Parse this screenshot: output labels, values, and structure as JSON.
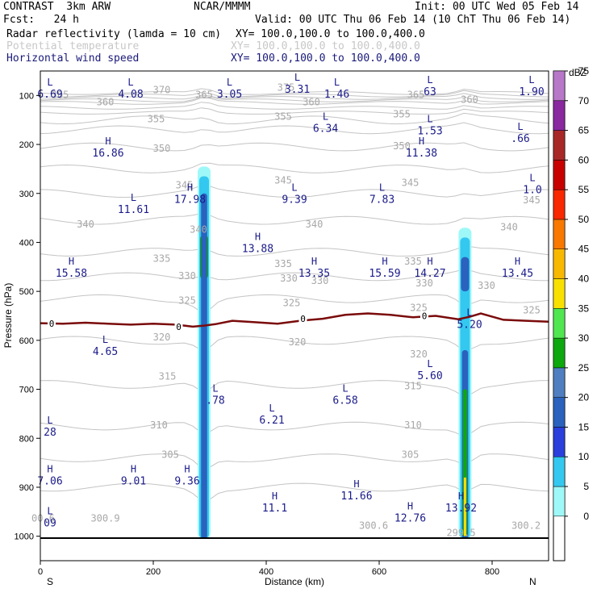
{
  "header": {
    "model": "CONTRAST  3km ARW",
    "center": "NCAR/MMMM",
    "init": "Init: 00 UTC Wed 05 Feb 14",
    "fcst": "Fcst:   24 h",
    "valid": "Valid: 00 UTC Thu 06 Feb 14 (10 ChT Thu 06 Feb 14)",
    "field1": "Radar reflectivity (lamda = 10 cm)",
    "field1_xy": "XY= 100.0,100.0 to 100.0,400.0",
    "field2": "Potential temperature",
    "field2_xy": "XY= 100.0,100.0 to 100.0,400.0",
    "field3": "Horizontal wind speed",
    "field3_xy": "XY= 100.0,100.0 to 100.0,400.0"
  },
  "chart_data": {
    "type": "cross-section",
    "xlabel": "Distance (km)",
    "ylabel": "Pressure (hPa)",
    "xlim": [
      0,
      900
    ],
    "ylim": [
      1050,
      50
    ],
    "x_ticks": [
      0,
      200,
      400,
      600,
      800
    ],
    "y_ticks": [
      100,
      200,
      300,
      400,
      500,
      600,
      700,
      800,
      900,
      1000
    ],
    "x_endpoints": [
      "S",
      "N"
    ],
    "colorbar": {
      "units": "dBZ",
      "levels": [
        "0",
        "5",
        "10",
        "15",
        "20",
        "25",
        "30",
        "35",
        "40",
        "45",
        "50",
        "55",
        "60",
        "65",
        "70",
        "75"
      ],
      "colors": [
        "#ffffff",
        "#9ff8f8",
        "#34c8f0",
        "#2a3fdc",
        "#2a62be",
        "#4f7fc0",
        "#0da80d",
        "#50e650",
        "#f8e000",
        "#f8b800",
        "#f87800",
        "#f82800",
        "#c80000",
        "#a82828",
        "#8a28a0",
        "#b878c8"
      ]
    },
    "freezing_level": {
      "label": "0",
      "x": [
        0,
        40,
        80,
        120,
        160,
        200,
        240,
        270,
        290,
        310,
        340,
        380,
        420,
        460,
        500,
        540,
        580,
        620,
        660,
        700,
        740,
        760,
        780,
        820,
        860,
        900
      ],
      "p": [
        565,
        566,
        564,
        566,
        568,
        566,
        568,
        572,
        570,
        567,
        560,
        563,
        566,
        560,
        556,
        548,
        545,
        548,
        553,
        550,
        557,
        552,
        545,
        558,
        560,
        562
      ]
    },
    "theta_labels": [
      "375",
      "370",
      "365",
      "360",
      "355",
      "350",
      "345",
      "340",
      "335",
      "330",
      "325",
      "320",
      "315",
      "310",
      "305",
      "300.9",
      "300.6",
      "300.2",
      "299.5"
    ],
    "theta_label_positions": [
      {
        "t": "365",
        "x": 35,
        "p": 105
      },
      {
        "t": "370",
        "x": 215,
        "p": 95
      },
      {
        "t": "365",
        "x": 290,
        "p": 105
      },
      {
        "t": "375",
        "x": 435,
        "p": 90
      },
      {
        "t": "365",
        "x": 665,
        "p": 105
      },
      {
        "t": "360",
        "x": 115,
        "p": 120
      },
      {
        "t": "360",
        "x": 480,
        "p": 120
      },
      {
        "t": "360",
        "x": 760,
        "p": 115
      },
      {
        "t": "355",
        "x": 205,
        "p": 155
      },
      {
        "t": "355",
        "x": 430,
        "p": 150
      },
      {
        "t": "355",
        "x": 640,
        "p": 145
      },
      {
        "t": "350",
        "x": 215,
        "p": 215
      },
      {
        "t": "350",
        "x": 640,
        "p": 210
      },
      {
        "t": "345",
        "x": 255,
        "p": 290
      },
      {
        "t": "345",
        "x": 430,
        "p": 280
      },
      {
        "t": "345",
        "x": 655,
        "p": 285
      },
      {
        "t": "345",
        "x": 870,
        "p": 320
      },
      {
        "t": "340",
        "x": 80,
        "p": 370
      },
      {
        "t": "340",
        "x": 280,
        "p": 380
      },
      {
        "t": "340",
        "x": 485,
        "p": 370
      },
      {
        "t": "340",
        "x": 830,
        "p": 375
      },
      {
        "t": "335",
        "x": 215,
        "p": 440
      },
      {
        "t": "335",
        "x": 430,
        "p": 450
      },
      {
        "t": "335",
        "x": 660,
        "p": 445
      },
      {
        "t": "330",
        "x": 260,
        "p": 475
      },
      {
        "t": "330",
        "x": 440,
        "p": 480
      },
      {
        "t": "330",
        "x": 495,
        "p": 485
      },
      {
        "t": "330",
        "x": 680,
        "p": 490
      },
      {
        "t": "330",
        "x": 790,
        "p": 495
      },
      {
        "t": "325",
        "x": 260,
        "p": 525
      },
      {
        "t": "325",
        "x": 445,
        "p": 530
      },
      {
        "t": "325",
        "x": 670,
        "p": 540
      },
      {
        "t": "325",
        "x": 870,
        "p": 545
      },
      {
        "t": "320",
        "x": 215,
        "p": 600
      },
      {
        "t": "320",
        "x": 455,
        "p": 610
      },
      {
        "t": "320",
        "x": 670,
        "p": 635
      },
      {
        "t": "315",
        "x": 225,
        "p": 680
      },
      {
        "t": "315",
        "x": 660,
        "p": 700
      },
      {
        "t": "310",
        "x": 210,
        "p": 780
      },
      {
        "t": "310",
        "x": 660,
        "p": 780
      },
      {
        "t": "305",
        "x": 230,
        "p": 840
      },
      {
        "t": "305",
        "x": 655,
        "p": 840
      },
      {
        "t": "300.9",
        "x": 115,
        "p": 970
      },
      {
        "t": "300.6",
        "x": 590,
        "p": 985
      },
      {
        "t": "300.2",
        "x": 860,
        "p": 985
      },
      {
        "t": "299.5",
        "x": 745,
        "p": 1000
      },
      {
        "t": "00.6",
        "x": 5,
        "p": 970
      }
    ],
    "wind_extrema": [
      {
        "type": "L",
        "value": "6.69",
        "x": 10,
        "p": 80,
        "lx": 10,
        "lp": 80
      },
      {
        "type": "L",
        "value": "4.08",
        "x": 160,
        "p": 80
      },
      {
        "type": "L",
        "value": "3.05",
        "x": 335,
        "p": 80
      },
      {
        "type": "L",
        "value": "3.31",
        "x": 455,
        "p": 70
      },
      {
        "type": "L",
        "value": "1.46",
        "x": 525,
        "p": 80
      },
      {
        "type": "L",
        "value": "63",
        "x": 690,
        "p": 75
      },
      {
        "type": "L",
        "value": "1.90",
        "x": 870,
        "p": 75
      },
      {
        "type": "L",
        "value": "6.34",
        "x": 505,
        "p": 150
      },
      {
        "type": "L",
        "value": "1.53",
        "x": 690,
        "p": 155
      },
      {
        "type": "L",
        "value": ".66",
        "x": 850,
        "p": 170
      },
      {
        "type": "H",
        "value": "16.86",
        "x": 120,
        "p": 200
      },
      {
        "type": "H",
        "value": "11.38",
        "x": 675,
        "p": 200
      },
      {
        "type": "H",
        "value": "17.98",
        "x": 265,
        "p": 295
      },
      {
        "type": "L",
        "value": "9.39",
        "x": 450,
        "p": 295
      },
      {
        "type": "L",
        "value": "7.83",
        "x": 605,
        "p": 295
      },
      {
        "type": "L",
        "value": "1.0",
        "x": 885,
        "p": 275
      },
      {
        "type": "L",
        "value": "11.61",
        "x": 165,
        "p": 315
      },
      {
        "type": "H",
        "value": "13.88",
        "x": 385,
        "p": 395
      },
      {
        "type": "H",
        "value": "15.58",
        "x": 55,
        "p": 445
      },
      {
        "type": "H",
        "value": "13.35",
        "x": 485,
        "p": 445
      },
      {
        "type": "H",
        "value": "15.59",
        "x": 610,
        "p": 445
      },
      {
        "type": "H",
        "value": "14.27",
        "x": 690,
        "p": 445
      },
      {
        "type": "H",
        "value": "13.45",
        "x": 845,
        "p": 445
      },
      {
        "type": "L",
        "value": "5.20",
        "x": 760,
        "p": 550
      },
      {
        "type": "L",
        "value": "4.65",
        "x": 115,
        "p": 605
      },
      {
        "type": "L",
        "value": "5.60",
        "x": 690,
        "p": 655
      },
      {
        "type": "L",
        "value": ".78",
        "x": 310,
        "p": 705
      },
      {
        "type": "L",
        "value": "6.58",
        "x": 540,
        "p": 705
      },
      {
        "type": "L",
        "value": "6.21",
        "x": 410,
        "p": 745
      },
      {
        "type": "L",
        "value": "28",
        "x": 5,
        "p": 770
      },
      {
        "type": "H",
        "value": "7.06",
        "x": 5,
        "p": 870
      },
      {
        "type": "H",
        "value": "9.01",
        "x": 165,
        "p": 870
      },
      {
        "type": "H",
        "value": "9.36",
        "x": 260,
        "p": 870
      },
      {
        "type": "H",
        "value": "11.66",
        "x": 560,
        "p": 900
      },
      {
        "type": "H",
        "value": "11.1",
        "x": 415,
        "p": 925
      },
      {
        "type": "H",
        "value": "13.92",
        "x": 745,
        "p": 925
      },
      {
        "type": "H",
        "value": "12.76",
        "x": 655,
        "p": 945
      },
      {
        "type": "L",
        "value": "09",
        "x": 5,
        "p": 955
      }
    ],
    "reflectivity_columns": [
      {
        "name": "western-column",
        "center_x": 290,
        "top_p": 245,
        "bottom_p": 1005,
        "max_dbz": 30,
        "cores": [
          {
            "p_top": 385,
            "p_bot": 475,
            "dbz": 30
          },
          {
            "p_top": 300,
            "p_bot": 1005,
            "dbz": 20
          }
        ]
      },
      {
        "name": "eastern-column",
        "center_x": 752,
        "top_p": 370,
        "bottom_p": 1005,
        "max_dbz": 45,
        "cores": [
          {
            "p_top": 430,
            "p_bot": 500,
            "dbz": 20
          },
          {
            "p_top": 620,
            "p_bot": 1005,
            "dbz": 20
          },
          {
            "p_top": 700,
            "p_bot": 1000,
            "dbz": 30
          },
          {
            "p_top": 880,
            "p_bot": 1000,
            "dbz": 40
          }
        ]
      }
    ]
  }
}
